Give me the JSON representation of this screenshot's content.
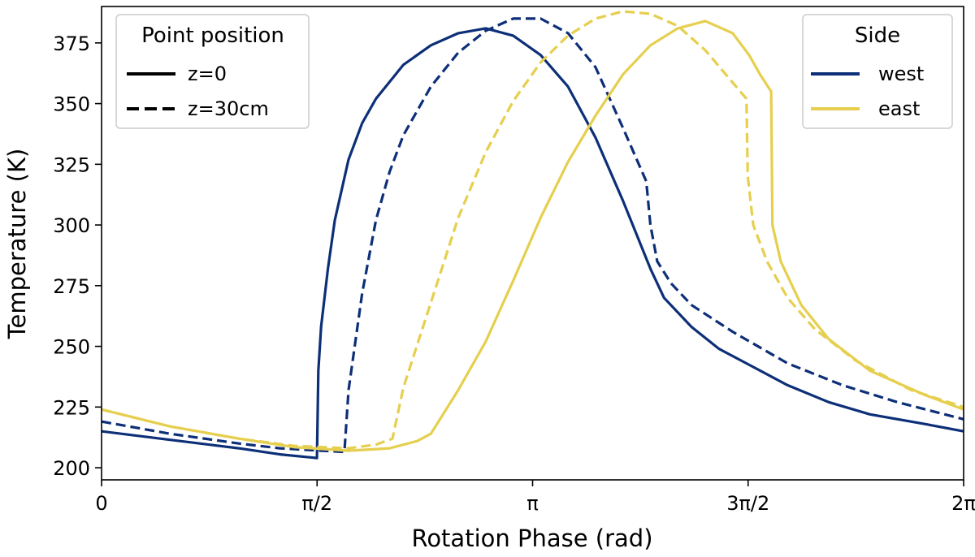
{
  "chart_data": {
    "type": "line",
    "xlabel": "Rotation Phase (rad)",
    "ylabel": "Temperature (K)",
    "xlim": [
      0,
      6.2832
    ],
    "ylim": [
      195,
      390
    ],
    "grid": false,
    "x_ticks": [
      {
        "value": 0,
        "label": "0"
      },
      {
        "value": 1.5708,
        "label": "π/2"
      },
      {
        "value": 3.1416,
        "label": "π"
      },
      {
        "value": 4.7124,
        "label": "3π/2"
      },
      {
        "value": 6.2832,
        "label": "2π"
      }
    ],
    "y_ticks": [
      200,
      225,
      250,
      275,
      300,
      325,
      350,
      375
    ],
    "colors": {
      "west": "#0d2f78",
      "east": "#e6cf4e"
    },
    "legends": [
      {
        "title": "Point position",
        "placement": "top-left",
        "entries": [
          {
            "label": "z=0",
            "style": "solid",
            "color": "#000000"
          },
          {
            "label": "z=30cm",
            "style": "dashed",
            "color": "#000000"
          }
        ]
      },
      {
        "title": "Side",
        "placement": "top-right",
        "entries": [
          {
            "label": "west",
            "style": "solid",
            "color": "#0d2f78"
          },
          {
            "label": "east",
            "style": "solid",
            "color": "#e6cf4e"
          }
        ]
      }
    ],
    "series": [
      {
        "side": "west",
        "position": "z=0",
        "color": "#0d2f78",
        "dash": "solid",
        "points": [
          [
            0,
            215
          ],
          [
            0.5,
            211.5
          ],
          [
            1.0,
            208
          ],
          [
            1.3,
            205.5
          ],
          [
            1.57,
            204
          ],
          [
            1.58,
            240
          ],
          [
            1.6,
            258
          ],
          [
            1.65,
            282
          ],
          [
            1.7,
            302
          ],
          [
            1.8,
            327
          ],
          [
            1.9,
            342
          ],
          [
            2.0,
            352
          ],
          [
            2.2,
            366
          ],
          [
            2.4,
            374
          ],
          [
            2.6,
            379
          ],
          [
            2.8,
            381
          ],
          [
            3.0,
            378
          ],
          [
            3.2,
            370
          ],
          [
            3.4,
            357
          ],
          [
            3.6,
            336
          ],
          [
            3.8,
            310
          ],
          [
            4.0,
            282
          ],
          [
            4.1,
            270
          ],
          [
            4.3,
            258
          ],
          [
            4.5,
            249
          ],
          [
            4.7,
            243
          ],
          [
            5.0,
            234
          ],
          [
            5.3,
            227
          ],
          [
            5.6,
            222
          ],
          [
            6.0,
            218
          ],
          [
            6.2832,
            215
          ]
        ]
      },
      {
        "side": "west",
        "position": "z=30cm",
        "color": "#0d2f78",
        "dash": "dashed",
        "points": [
          [
            0,
            219
          ],
          [
            0.5,
            214
          ],
          [
            1.0,
            210
          ],
          [
            1.3,
            208
          ],
          [
            1.6,
            207
          ],
          [
            1.77,
            206.5
          ],
          [
            1.8,
            232
          ],
          [
            1.85,
            252
          ],
          [
            1.9,
            272
          ],
          [
            2.0,
            302
          ],
          [
            2.1,
            322
          ],
          [
            2.2,
            337
          ],
          [
            2.4,
            357
          ],
          [
            2.6,
            371
          ],
          [
            2.8,
            380
          ],
          [
            3.0,
            385
          ],
          [
            3.2,
            385
          ],
          [
            3.4,
            379
          ],
          [
            3.6,
            365
          ],
          [
            3.8,
            340
          ],
          [
            3.97,
            318
          ],
          [
            4.0,
            300
          ],
          [
            4.05,
            285
          ],
          [
            4.15,
            276
          ],
          [
            4.3,
            267
          ],
          [
            4.6,
            256
          ],
          [
            5.0,
            243
          ],
          [
            5.4,
            234
          ],
          [
            5.8,
            227
          ],
          [
            6.2832,
            220
          ]
        ]
      },
      {
        "side": "east",
        "position": "z=0",
        "color": "#e6cf4e",
        "dash": "solid",
        "points": [
          [
            0,
            224
          ],
          [
            0.5,
            217
          ],
          [
            1.0,
            212
          ],
          [
            1.4,
            208.5
          ],
          [
            1.8,
            207
          ],
          [
            2.1,
            208
          ],
          [
            2.3,
            211
          ],
          [
            2.4,
            214
          ],
          [
            2.6,
            232
          ],
          [
            2.8,
            252
          ],
          [
            3.0,
            277
          ],
          [
            3.2,
            303
          ],
          [
            3.4,
            326
          ],
          [
            3.6,
            345
          ],
          [
            3.8,
            362
          ],
          [
            4.0,
            374
          ],
          [
            4.2,
            381
          ],
          [
            4.4,
            384
          ],
          [
            4.6,
            379
          ],
          [
            4.72,
            370
          ],
          [
            4.8,
            362
          ],
          [
            4.88,
            355
          ],
          [
            4.89,
            300
          ],
          [
            4.95,
            285
          ],
          [
            5.1,
            267
          ],
          [
            5.3,
            253
          ],
          [
            5.6,
            240
          ],
          [
            6.0,
            230
          ],
          [
            6.2832,
            224
          ]
        ]
      },
      {
        "side": "east",
        "position": "z=30cm",
        "color": "#e6cf4e",
        "dash": "dashed",
        "points": [
          [
            0,
            224
          ],
          [
            0.5,
            217
          ],
          [
            1.0,
            212
          ],
          [
            1.4,
            209
          ],
          [
            1.8,
            208
          ],
          [
            2.0,
            209.5
          ],
          [
            2.12,
            212
          ],
          [
            2.2,
            233
          ],
          [
            2.4,
            268
          ],
          [
            2.6,
            303
          ],
          [
            2.8,
            330
          ],
          [
            3.0,
            351
          ],
          [
            3.2,
            367
          ],
          [
            3.4,
            378
          ],
          [
            3.6,
            385
          ],
          [
            3.8,
            388
          ],
          [
            4.0,
            387
          ],
          [
            4.2,
            382
          ],
          [
            4.4,
            372
          ],
          [
            4.55,
            362
          ],
          [
            4.7,
            352
          ],
          [
            4.71,
            320
          ],
          [
            4.75,
            300
          ],
          [
            4.85,
            285
          ],
          [
            5.0,
            270
          ],
          [
            5.2,
            257
          ],
          [
            5.5,
            244
          ],
          [
            5.9,
            232
          ],
          [
            6.2832,
            225
          ]
        ]
      }
    ]
  }
}
